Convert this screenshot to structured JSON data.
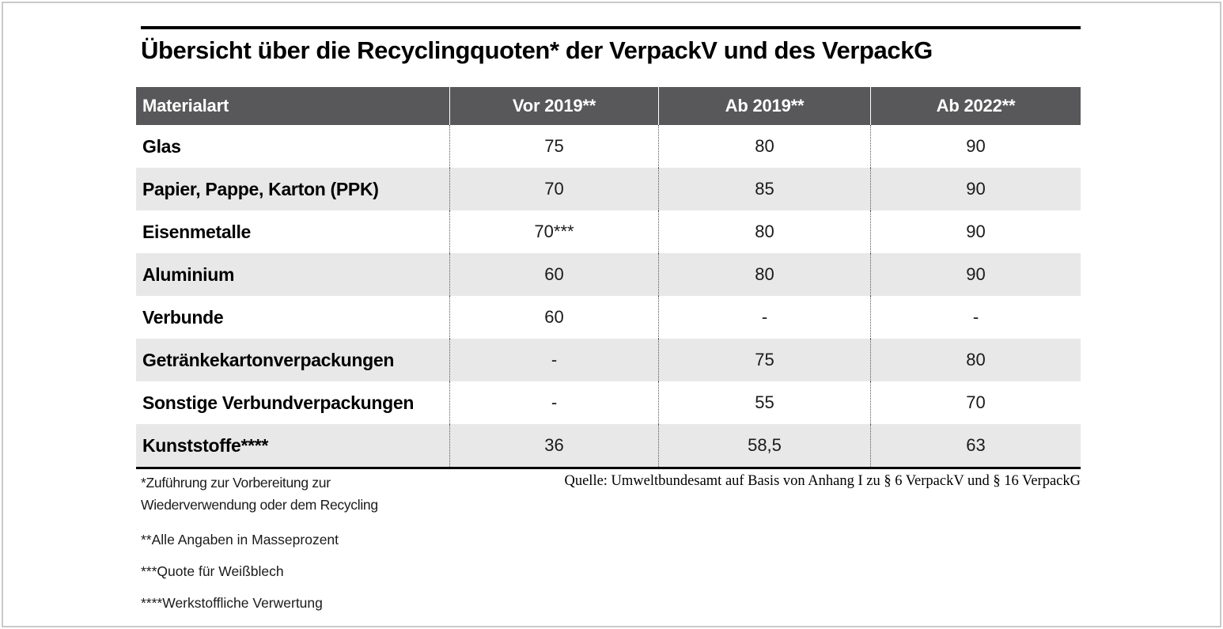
{
  "title": "Übersicht über die Recyclingquoten* der VerpackV und des VerpackG",
  "chart_data": {
    "type": "table",
    "title": "Übersicht über die Recyclingquoten* der VerpackV und des VerpackG",
    "columns": [
      "Materialart",
      "Vor 2019**",
      "Ab 2019**",
      "Ab 2022**"
    ],
    "rows": [
      [
        "Glas",
        "75",
        "80",
        "90"
      ],
      [
        "Papier, Pappe, Karton (PPK)",
        "70",
        "85",
        "90"
      ],
      [
        "Eisenmetalle",
        "70***",
        "80",
        "90"
      ],
      [
        "Aluminium",
        "60",
        "80",
        "90"
      ],
      [
        "Verbunde",
        "60",
        "-",
        "-"
      ],
      [
        "Getränkekartonverpackungen",
        "-",
        "75",
        "80"
      ],
      [
        "Sonstige Verbundverpackungen",
        "-",
        "55",
        "70"
      ],
      [
        "Kunststoffe****",
        "36",
        "58,5",
        "63"
      ]
    ]
  },
  "footnotes": [
    "*Zuführung zur Vorbereitung zur Wiederverwendung oder dem Recycling",
    "**Alle Angaben in Masseprozent",
    "***Quote für Weißblech",
    "****Werkstoffliche Verwertung"
  ],
  "source": "Quelle: Umweltbundesamt auf Basis von Anhang I zu § 6 VerpackV und § 16 VerpackG",
  "colors": {
    "header_bg": "#58585a",
    "header_text": "#ffffff",
    "row_alt_bg": "#e8e8e8",
    "row_bg": "#ffffff",
    "rule": "#000000",
    "frame": "#c9c9c9"
  }
}
